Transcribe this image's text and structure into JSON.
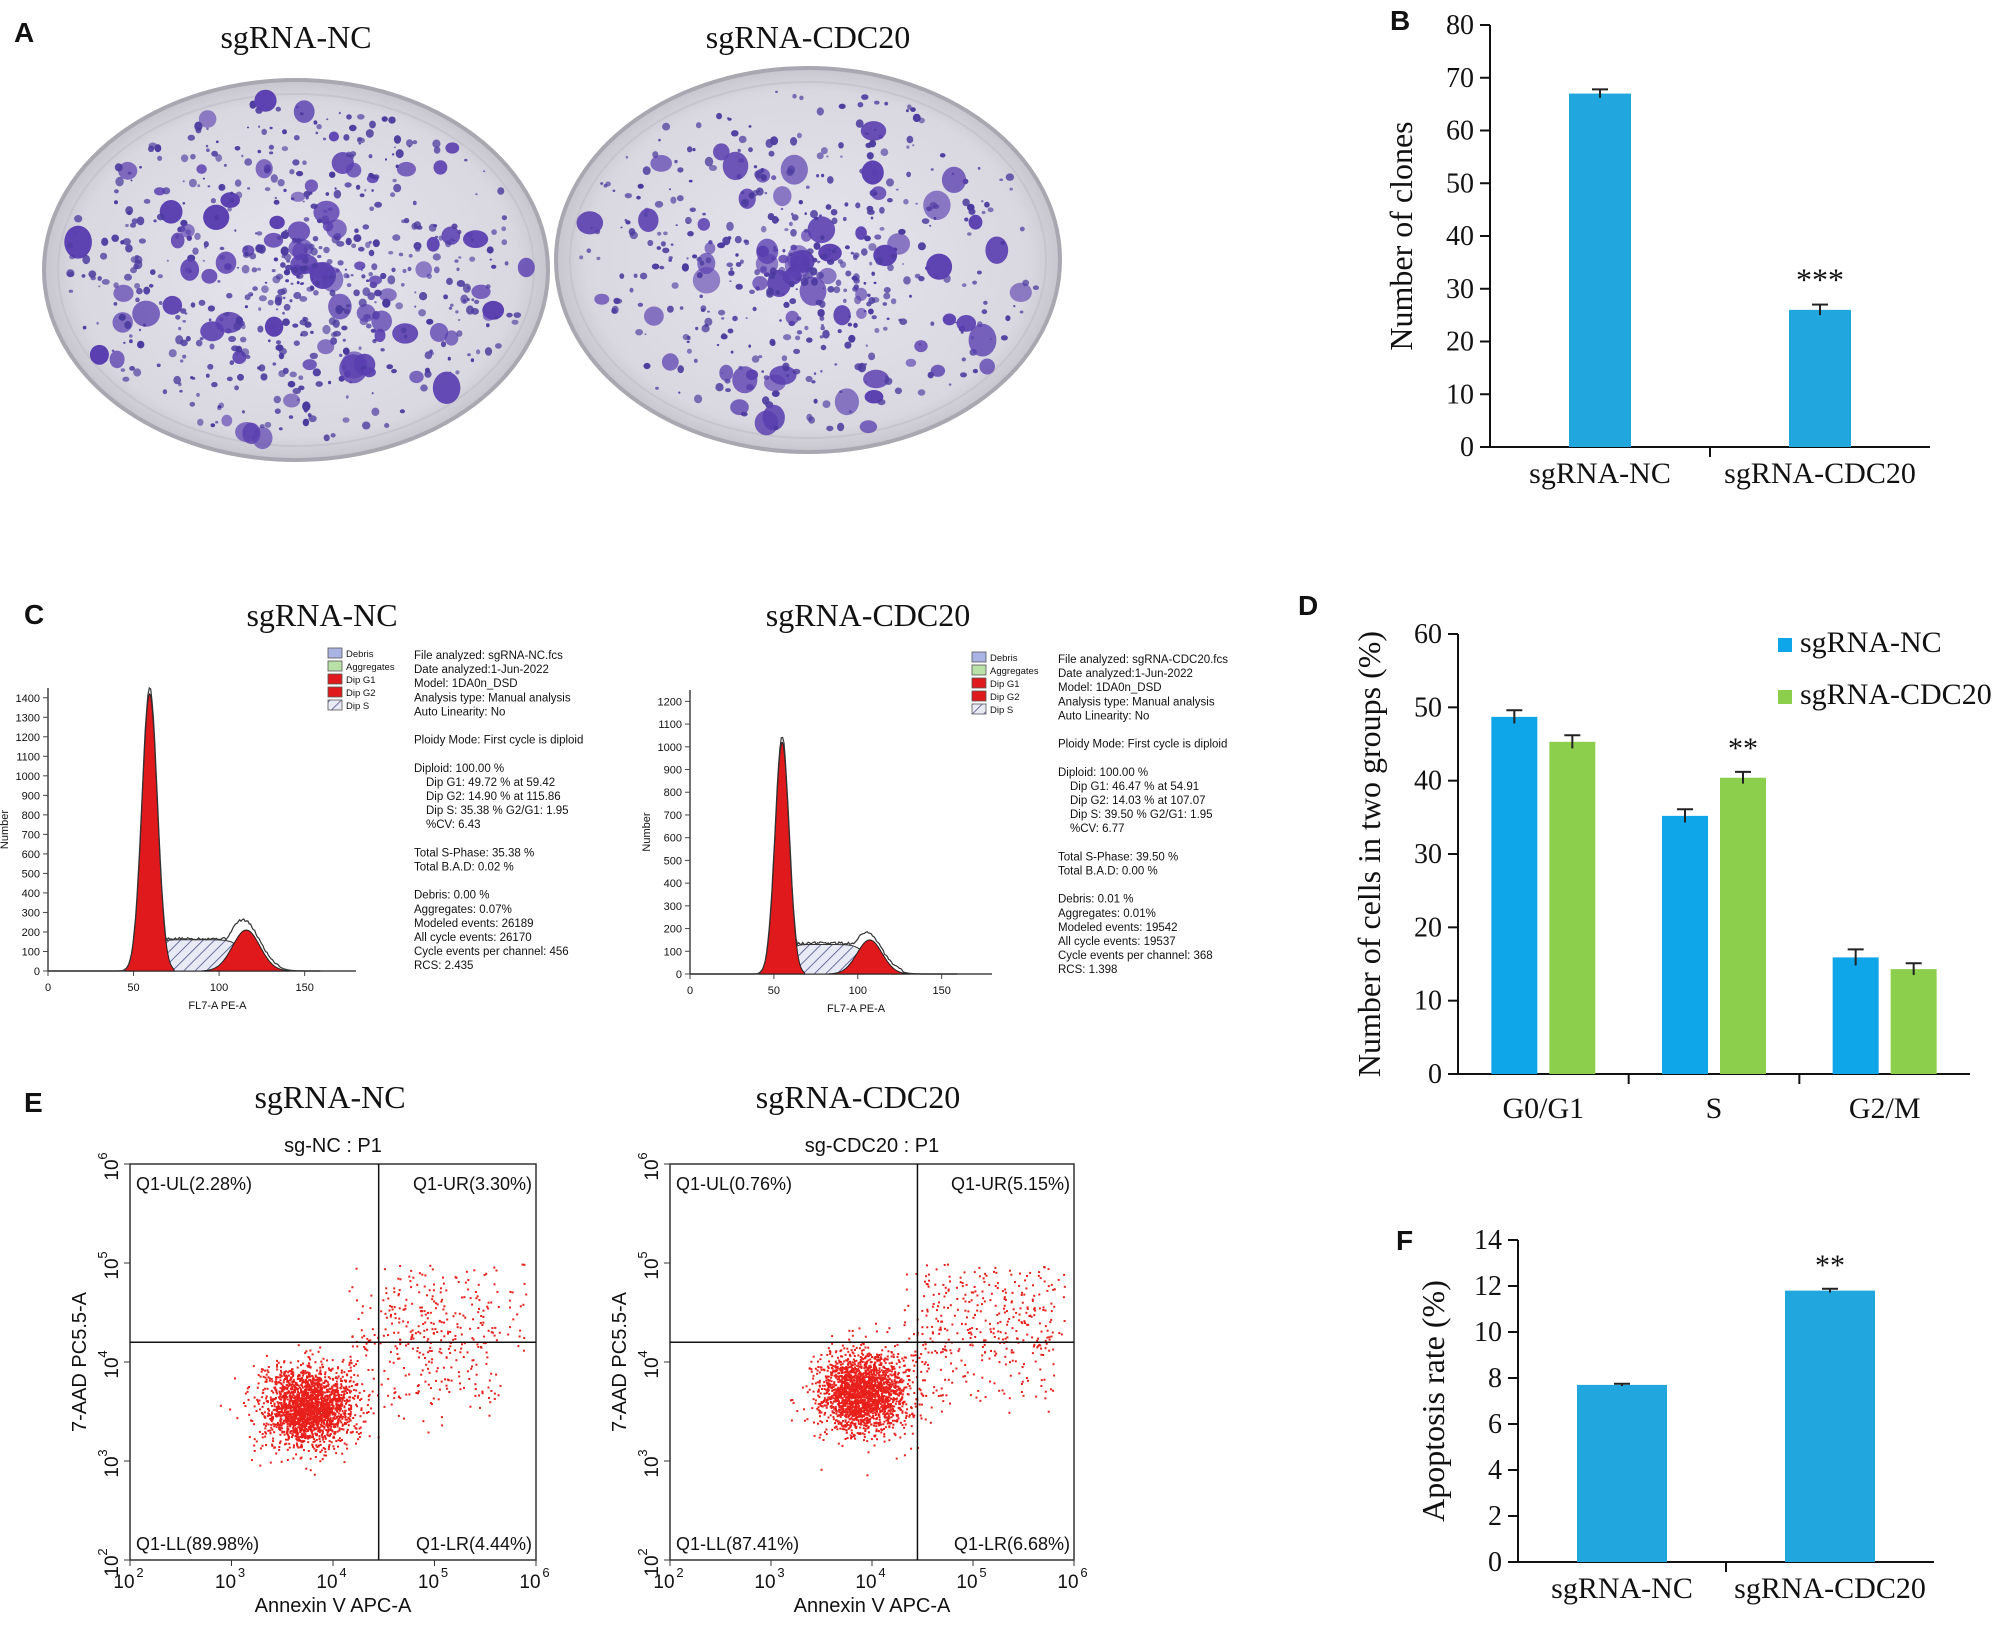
{
  "panels": {
    "A": {
      "letter": "A",
      "plates": [
        {
          "title": "sgRNA-NC"
        },
        {
          "title": "sgRNA-CDC20"
        }
      ]
    },
    "B": {
      "letter": "B"
    },
    "C": {
      "letter": "C",
      "legend_items": [
        "Debris",
        "Aggregates",
        "Dip G1",
        "Dip G2",
        "Dip S"
      ],
      "histograms": [
        {
          "title": "sgRNA-NC",
          "ylabel": "Number",
          "xlabel": "FL7-A PE-A",
          "yticks": [
            "0",
            "100",
            "200",
            "300",
            "400",
            "500",
            "600",
            "700",
            "800",
            "900",
            "1000",
            "1100",
            "1200",
            "1300",
            "1400"
          ],
          "xticks": [
            "0",
            "50",
            "100",
            "150"
          ],
          "ymax": 1450,
          "xmax": 180,
          "g1_peak": {
            "pos": 59.42,
            "height": 1420,
            "width": 4.5
          },
          "g2_peak": {
            "pos": 115.86,
            "height": 210,
            "width": 8
          },
          "s_level": 160,
          "raw_g2": 320,
          "report": [
            "File analyzed: sgRNA-NC.fcs",
            "Date analyzed:1-Jun-2022",
            "Model: 1DA0n_DSD",
            "Analysis type: Manual analysis",
            "Auto Linearity: No",
            "",
            "Ploidy Mode: First cycle is diploid",
            "",
            "Diploid: 100.00 %",
            "   Dip G1: 49.72 % at 59.42",
            "   Dip G2: 14.90 % at 115.86",
            "   Dip S: 35.38 % G2/G1: 1.95",
            "   %CV: 6.43",
            "",
            "Total S-Phase: 35.38 %",
            "Total B.A.D: 0.02 %",
            "",
            "Debris: 0.00 %",
            "Aggregates: 0.07%",
            "Modeled events: 26189",
            "All cycle events: 26170",
            "Cycle events per channel: 456",
            "RCS: 2.435"
          ]
        },
        {
          "title": "sgRNA-CDC20",
          "ylabel": "Number",
          "xlabel": "FL7-A PE-A",
          "yticks": [
            "0",
            "100",
            "200",
            "300",
            "400",
            "500",
            "600",
            "700",
            "800",
            "900",
            "1000",
            "1100",
            "1200"
          ],
          "xticks": [
            "0",
            "50",
            "100",
            "150"
          ],
          "ymax": 1250,
          "xmax": 180,
          "g1_peak": {
            "pos": 54.91,
            "height": 1020,
            "width": 4.2
          },
          "g2_peak": {
            "pos": 107.07,
            "height": 150,
            "width": 7.5
          },
          "s_level": 130,
          "raw_g2": 230,
          "report": [
            "File analyzed: sgRNA-CDC20.fcs",
            "Date analyzed:1-Jun-2022",
            "Model: 1DA0n_DSD",
            "Analysis type: Manual analysis",
            "Auto Linearity: No",
            "",
            "Ploidy Mode: First cycle is diploid",
            "",
            "Diploid: 100.00 %",
            "   Dip G1: 46.47 % at 54.91",
            "   Dip G2: 14.03 % at 107.07",
            "   Dip S: 39.50 % G2/G1: 1.95",
            "   %CV: 6.77",
            "",
            "Total S-Phase: 39.50 %",
            "Total B.A.D: 0.00 %",
            "",
            "Debris: 0.01 %",
            "Aggregates: 0.01%",
            "Modeled events: 19542",
            "All cycle events: 19537",
            "Cycle events per channel: 368",
            "RCS: 1.398"
          ]
        }
      ]
    },
    "D": {
      "letter": "D"
    },
    "E": {
      "letter": "E",
      "plots": [
        {
          "group_title": "sgRNA-NC",
          "plot_title": "sg-NC : P1",
          "ylabel": "7-AAD PC5.5-A",
          "xlabel": "Annexin V APC-A",
          "quadrants": {
            "UL": "Q1-UL(2.28%)",
            "UR": "Q1-UR(3.30%)",
            "LL": "Q1-LL(89.98%)",
            "LR": "Q1-LR(4.44%)"
          },
          "gate": {
            "x": 4.45,
            "y": 4.2
          },
          "cloud_center": {
            "x": 3.75,
            "y": 3.55
          },
          "tick_exponents": [
            "2",
            "3",
            "4",
            "5",
            "6"
          ]
        },
        {
          "group_title": "sgRNA-CDC20",
          "plot_title": "sg-CDC20 : P1",
          "ylabel": "7-AAD PC5.5-A",
          "xlabel": "Annexin V APC-A",
          "quadrants": {
            "UL": "Q1-UL(0.76%)",
            "UR": "Q1-UR(5.15%)",
            "LL": "Q1-LL(87.41%)",
            "LR": "Q1-LR(6.68%)"
          },
          "gate": {
            "x": 4.45,
            "y": 4.2
          },
          "cloud_center": {
            "x": 3.9,
            "y": 3.7
          },
          "tick_exponents": [
            "2",
            "3",
            "4",
            "5",
            "6"
          ]
        }
      ]
    },
    "F": {
      "letter": "F"
    }
  },
  "chart_data": [
    {
      "id": "B",
      "type": "bar",
      "categories": [
        "sgRNA-NC",
        "sgRNA-CDC20"
      ],
      "values": [
        67,
        26
      ],
      "errors": [
        0.8,
        1.0
      ],
      "annotations": [
        "",
        "***"
      ],
      "ylabel": "Number of clones",
      "ylim": [
        0,
        80
      ],
      "yticks": [
        0,
        10,
        20,
        30,
        40,
        50,
        60,
        70,
        80
      ],
      "color": "#21a6dd"
    },
    {
      "id": "D",
      "type": "bar",
      "categories": [
        "G0/G1",
        "S",
        "G2/M"
      ],
      "series": [
        {
          "name": "sgRNA-NC",
          "values": [
            48.7,
            35.2,
            15.9
          ],
          "errors": [
            0.9,
            0.9,
            1.1
          ],
          "color": "#0ea5e9"
        },
        {
          "name": "sgRNA-CDC20",
          "values": [
            45.3,
            40.4,
            14.3
          ],
          "errors": [
            0.9,
            0.8,
            0.8
          ],
          "color": "#8ccf4d"
        }
      ],
      "annotations": [
        "",
        "**",
        ""
      ],
      "ylabel": "Number of cells in two groups (%)",
      "ylim": [
        0,
        60
      ],
      "yticks": [
        0,
        10,
        20,
        30,
        40,
        50,
        60
      ],
      "legend": "top-right"
    },
    {
      "id": "F",
      "type": "bar",
      "categories": [
        "sgRNA-NC",
        "sgRNA-CDC20"
      ],
      "values": [
        7.7,
        11.8
      ],
      "errors": [
        0.05,
        0.08
      ],
      "annotations": [
        "",
        "**"
      ],
      "ylabel": "Apoptosis rate (%)",
      "ylim": [
        0,
        14
      ],
      "yticks": [
        0,
        2,
        4,
        6,
        8,
        10,
        12,
        14
      ],
      "color": "#21a6dd"
    }
  ]
}
